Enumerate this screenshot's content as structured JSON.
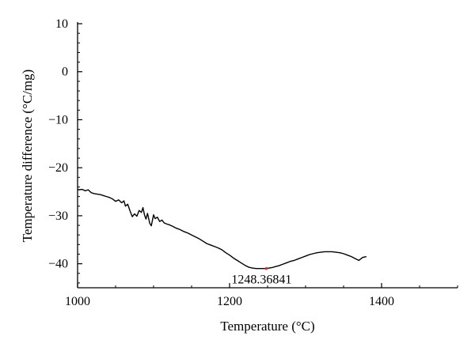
{
  "chart_data": {
    "type": "line",
    "title": "",
    "xlabel": "Temperature (°C)",
    "ylabel": "Temperature difference (°C/mg)",
    "xlim": [
      1000,
      1500
    ],
    "ylim": [
      -45,
      10
    ],
    "x_ticks": [
      1000,
      1200,
      1400
    ],
    "x_tick_labels": [
      "1000",
      "1200",
      "1400"
    ],
    "y_ticks": [
      10,
      0,
      -10,
      -20,
      -30,
      -40
    ],
    "y_tick_labels": [
      "10",
      "0",
      "−10",
      "−20",
      "−30",
      "−40"
    ],
    "grid": false,
    "legend": "none",
    "colors": {
      "line": "#000000",
      "marker": "#e03030",
      "axis": "#000000"
    },
    "series": [
      {
        "x": [
          1000,
          1006,
          1010,
          1014,
          1018,
          1022,
          1026,
          1030,
          1034,
          1038,
          1042,
          1046,
          1050,
          1054,
          1058,
          1061,
          1063,
          1066,
          1069,
          1072,
          1075,
          1078,
          1081,
          1084,
          1086,
          1088,
          1090,
          1092,
          1095,
          1097,
          1100,
          1102,
          1105,
          1108,
          1111,
          1114,
          1117,
          1121,
          1125,
          1130,
          1135,
          1140,
          1145,
          1150,
          1155,
          1160,
          1165,
          1170,
          1175,
          1180,
          1185,
          1190,
          1195,
          1200,
          1205,
          1210,
          1215,
          1220,
          1225,
          1230,
          1235,
          1240,
          1245,
          1248,
          1252,
          1256,
          1260,
          1265,
          1270,
          1275,
          1280,
          1285,
          1290,
          1295,
          1300,
          1305,
          1310,
          1315,
          1320,
          1325,
          1330,
          1335,
          1340,
          1345,
          1350,
          1355,
          1360,
          1365,
          1370,
          1375,
          1380
        ],
        "y": [
          -24.6,
          -24.5,
          -24.8,
          -24.6,
          -25.2,
          -25.4,
          -25.5,
          -25.6,
          -25.8,
          -26.0,
          -26.2,
          -26.5,
          -27.0,
          -26.7,
          -27.3,
          -26.9,
          -28.0,
          -27.6,
          -29.0,
          -30.2,
          -29.6,
          -30.1,
          -28.9,
          -29.3,
          -28.3,
          -29.8,
          -30.7,
          -29.5,
          -31.6,
          -32.1,
          -29.8,
          -30.6,
          -30.3,
          -31.2,
          -30.9,
          -31.5,
          -31.7,
          -31.9,
          -32.2,
          -32.6,
          -32.9,
          -33.3,
          -33.6,
          -34.0,
          -34.4,
          -34.8,
          -35.3,
          -35.8,
          -36.1,
          -36.4,
          -36.7,
          -37.1,
          -37.7,
          -38.2,
          -38.8,
          -39.3,
          -39.8,
          -40.3,
          -40.7,
          -40.9,
          -41.0,
          -41.0,
          -41.0,
          -41.0,
          -40.9,
          -40.8,
          -40.6,
          -40.4,
          -40.1,
          -39.8,
          -39.5,
          -39.3,
          -39.0,
          -38.7,
          -38.4,
          -38.1,
          -37.9,
          -37.7,
          -37.6,
          -37.5,
          -37.5,
          -37.5,
          -37.6,
          -37.7,
          -37.9,
          -38.2,
          -38.5,
          -38.9,
          -39.3,
          -38.7,
          -38.5
        ]
      }
    ],
    "annotation": {
      "x": 1248.36841,
      "y": -41.0,
      "label": "1248.36841"
    }
  }
}
